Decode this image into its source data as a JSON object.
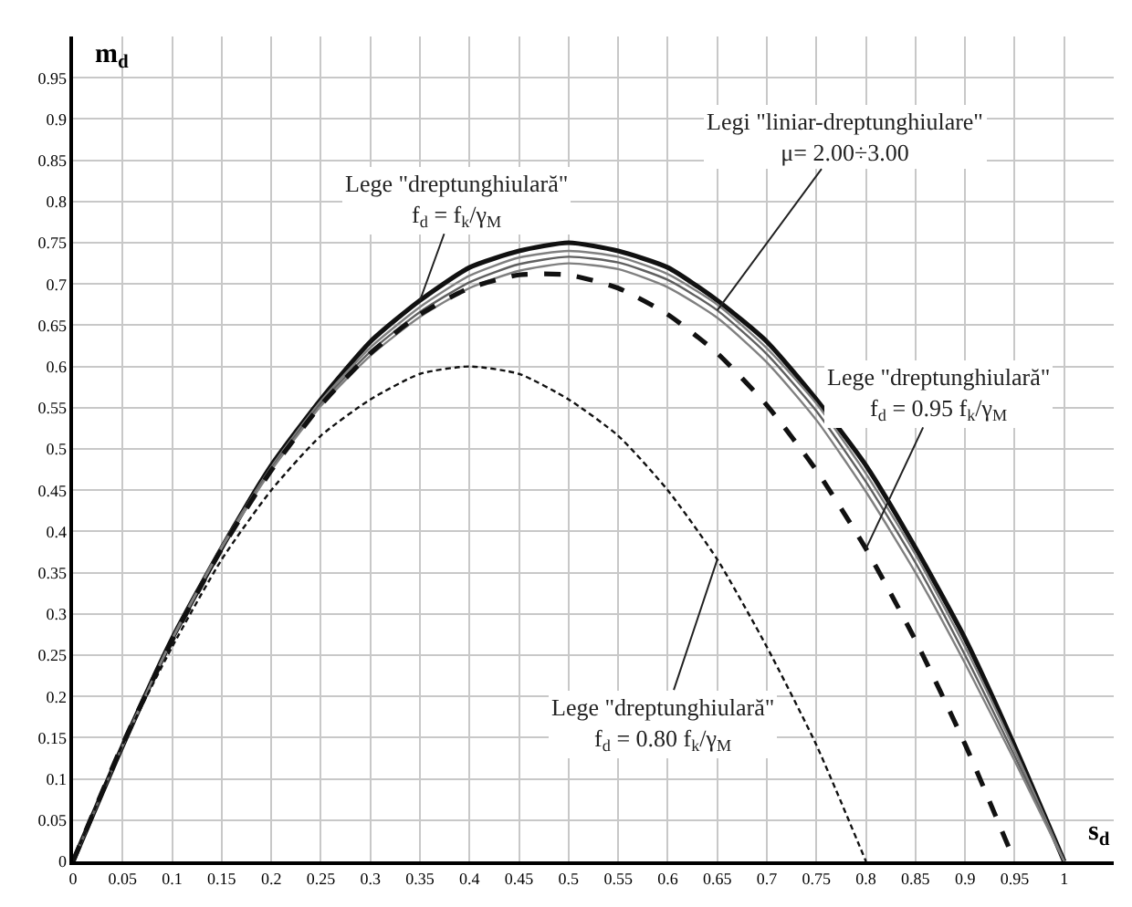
{
  "chart_data": {
    "type": "line",
    "xlabel": "s$_{d}$",
    "ylabel": "m$_{d}$",
    "x": [
      0,
      0.05,
      0.1,
      0.15,
      0.2,
      0.25,
      0.3,
      0.35,
      0.4,
      0.45,
      0.5,
      0.55,
      0.6,
      0.65,
      0.7,
      0.75,
      0.8,
      0.85,
      0.9,
      0.95,
      1
    ],
    "series": [
      {
        "color": "#111111",
        "line_style": "solid",
        "values": [
          0,
          0.14,
          0.27,
          0.38,
          0.48,
          0.56,
          0.63,
          0.68,
          0.72,
          0.74,
          0.75,
          0.74,
          0.72,
          0.68,
          0.63,
          0.56,
          0.48,
          0.38,
          0.27,
          0.14,
          0
        ]
      },
      {
        "color": "#808080",
        "line_style": "solid",
        "values": [
          0,
          0.14,
          0.27,
          0.382,
          0.478,
          0.558,
          0.623,
          0.672,
          0.71,
          0.732,
          0.74,
          0.733,
          0.712,
          0.675,
          0.622,
          0.555,
          0.47,
          0.372,
          0.26,
          0.135,
          0
        ]
      },
      {
        "color": "#606060",
        "line_style": "solid",
        "values": [
          0,
          0.14,
          0.27,
          0.381,
          0.476,
          0.555,
          0.618,
          0.666,
          0.702,
          0.724,
          0.733,
          0.726,
          0.705,
          0.668,
          0.615,
          0.546,
          0.46,
          0.362,
          0.25,
          0.128,
          0
        ]
      },
      {
        "color": "#808080",
        "line_style": "solid",
        "values": [
          null,
          0.14,
          0.269,
          0.38,
          0.474,
          0.552,
          0.613,
          0.66,
          0.695,
          0.716,
          0.725,
          0.718,
          0.696,
          0.659,
          0.605,
          0.535,
          0.448,
          0.35,
          0.24,
          0.122,
          0
        ]
      },
      {
        "color": "#111111",
        "line_style": "dashed",
        "x": [
          0,
          0.05,
          0.1,
          0.15,
          0.2,
          0.25,
          0.3,
          0.35,
          0.4,
          0.45,
          0.5,
          0.55,
          0.6,
          0.65,
          0.7,
          0.75,
          0.8,
          0.85,
          0.9,
          0.95
        ],
        "values": [
          0,
          0.142,
          0.268,
          0.379,
          0.474,
          0.553,
          0.616,
          0.663,
          0.695,
          0.711,
          0.711,
          0.695,
          0.663,
          0.616,
          0.553,
          0.474,
          0.379,
          0.268,
          0.142,
          0
        ]
      },
      {
        "color": "#111111",
        "line_style": "dashed",
        "x": [
          0,
          0.05,
          0.1,
          0.15,
          0.2,
          0.25,
          0.3,
          0.35,
          0.4,
          0.45,
          0.5,
          0.55,
          0.6,
          0.65,
          0.7,
          0.75,
          0.8
        ],
        "values": [
          0,
          0.141,
          0.26,
          0.366,
          0.45,
          0.516,
          0.56,
          0.591,
          0.6,
          0.591,
          0.56,
          0.516,
          0.45,
          0.366,
          0.26,
          0.141,
          0
        ]
      }
    ],
    "xlim": [
      0,
      1.05
    ],
    "ylim": [
      0,
      1.0
    ],
    "xticks": [
      0,
      0.05,
      0.1,
      0.15,
      0.2,
      0.25,
      0.3,
      0.35,
      0.4,
      0.45,
      0.5,
      0.55,
      0.6,
      0.65,
      0.7,
      0.75,
      0.8,
      0.85,
      0.9,
      0.95,
      1
    ],
    "yticks": [
      0,
      0.05,
      0.1,
      0.15,
      0.2,
      0.25,
      0.3,
      0.35,
      0.4,
      0.45,
      0.5,
      0.55,
      0.6,
      0.65,
      0.7,
      0.75,
      0.8,
      0.85,
      0.9,
      0.95
    ],
    "grid": true,
    "marker": "none",
    "annotations": [
      {
        "text": "Lege \"dreptunghiulară\"\nf$_{d}$ = f$_{k}$/γ$_{M}$",
        "x": 0.35,
        "y": 0.68
      },
      {
        "text": "Legi \"liniar-dreptunghiulare\"\nμ= 2.00÷3.00",
        "x": 0.65,
        "y": 0.668
      },
      {
        "text": "Lege \"dreptunghiulară\"\nf$_{d}$ = 0.95 f$_{k}$/γ$_{M}$",
        "x": 0.8,
        "y": 0.379
      },
      {
        "text": "Lege \"dreptunghiulară\"\nf$_{d}$ = 0.80 f$_{k}$/γ$_{M}$",
        "x": 0.65,
        "y": 0.366
      }
    ]
  }
}
